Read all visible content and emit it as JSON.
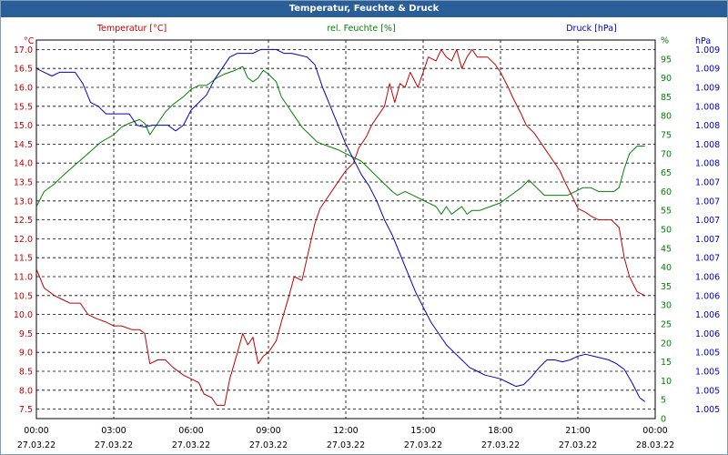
{
  "window": {
    "title": "Temperatur, Feuchte & Druck"
  },
  "chart_data": {
    "type": "line",
    "title": "Temperatur, Feuchte & Druck",
    "grid": true,
    "x_ticks": [
      {
        "time": "00:00",
        "date": "27.03.22"
      },
      {
        "time": "03:00",
        "date": "27.03.22"
      },
      {
        "time": "06:00",
        "date": "27.03.22"
      },
      {
        "time": "09:00",
        "date": "27.03.22"
      },
      {
        "time": "12:00",
        "date": "27.03.22"
      },
      {
        "time": "15:00",
        "date": "27.03.22"
      },
      {
        "time": "18:00",
        "date": "27.03.22"
      },
      {
        "time": "21:00",
        "date": "27.03.22"
      },
      {
        "time": "00:00",
        "date": "28.03.22"
      }
    ],
    "xlim": [
      0,
      24
    ],
    "axes": {
      "temperature": {
        "label": "Temperatur [°C]",
        "unit": "°C",
        "color": "#c00000",
        "ylim": [
          7.25,
          17.25
        ],
        "ticks": [
          "7.5",
          "8.0",
          "8.5",
          "9.0",
          "9.5",
          "10.0",
          "10.5",
          "11.0",
          "11.5",
          "12.0",
          "12.5",
          "13.0",
          "13.5",
          "14.0",
          "14.5",
          "15.0",
          "15.5",
          "16.0",
          "16.5",
          "17.0"
        ]
      },
      "humidity": {
        "label": "rel. Feuchte [%]",
        "unit": "%",
        "color": "#008000",
        "ylim": [
          0,
          100
        ],
        "ticks": [
          "0",
          "5",
          "10",
          "15",
          "20",
          "25",
          "30",
          "35",
          "40",
          "45",
          "50",
          "55",
          "60",
          "65",
          "70",
          "75",
          "80",
          "85",
          "90",
          "95",
          "%"
        ]
      },
      "pressure": {
        "label": "Druck [hPa]",
        "unit": "hPa",
        "color": "#0000c0",
        "ticks": [
          "1.005",
          "1.005",
          "1.005",
          "1.005",
          "1.006",
          "1.006",
          "1.006",
          "1.006",
          "1.007",
          "1.007",
          "1.007",
          "1.007",
          "1.007",
          "1.008",
          "1.008",
          "1.008",
          "1.008",
          "1.009",
          "1.009",
          "1.009"
        ]
      }
    },
    "series": [
      {
        "name": "Temperatur [°C]",
        "axis": "temperature",
        "color": "#c00000",
        "points": [
          [
            0.0,
            11.2
          ],
          [
            0.3,
            10.7
          ],
          [
            0.7,
            10.5
          ],
          [
            1.0,
            10.4
          ],
          [
            1.3,
            10.3
          ],
          [
            1.7,
            10.3
          ],
          [
            2.0,
            10.0
          ],
          [
            2.3,
            9.9
          ],
          [
            2.7,
            9.8
          ],
          [
            3.0,
            9.7
          ],
          [
            3.3,
            9.7
          ],
          [
            3.7,
            9.6
          ],
          [
            4.0,
            9.6
          ],
          [
            4.2,
            9.5
          ],
          [
            4.4,
            8.7
          ],
          [
            4.7,
            8.8
          ],
          [
            5.0,
            8.8
          ],
          [
            5.3,
            8.6
          ],
          [
            5.7,
            8.4
          ],
          [
            6.0,
            8.3
          ],
          [
            6.3,
            8.2
          ],
          [
            6.5,
            7.9
          ],
          [
            6.8,
            7.8
          ],
          [
            7.0,
            7.6
          ],
          [
            7.3,
            7.6
          ],
          [
            7.5,
            8.3
          ],
          [
            7.8,
            9.0
          ],
          [
            8.0,
            9.5
          ],
          [
            8.2,
            9.2
          ],
          [
            8.4,
            9.4
          ],
          [
            8.6,
            8.7
          ],
          [
            8.8,
            8.9
          ],
          [
            9.0,
            9.0
          ],
          [
            9.3,
            9.3
          ],
          [
            9.5,
            9.8
          ],
          [
            9.8,
            10.5
          ],
          [
            10.0,
            11.0
          ],
          [
            10.3,
            10.9
          ],
          [
            10.5,
            11.5
          ],
          [
            10.8,
            12.4
          ],
          [
            11.0,
            12.8
          ],
          [
            11.3,
            13.1
          ],
          [
            11.5,
            13.3
          ],
          [
            11.8,
            13.6
          ],
          [
            12.0,
            13.8
          ],
          [
            12.3,
            14.0
          ],
          [
            12.5,
            14.4
          ],
          [
            12.8,
            14.7
          ],
          [
            13.0,
            15.0
          ],
          [
            13.3,
            15.3
          ],
          [
            13.5,
            15.5
          ],
          [
            13.7,
            16.1
          ],
          [
            13.9,
            15.6
          ],
          [
            14.1,
            16.1
          ],
          [
            14.3,
            16.0
          ],
          [
            14.5,
            16.4
          ],
          [
            14.8,
            16.0
          ],
          [
            15.0,
            16.4
          ],
          [
            15.2,
            16.8
          ],
          [
            15.5,
            16.7
          ],
          [
            15.7,
            17.0
          ],
          [
            15.9,
            16.8
          ],
          [
            16.1,
            16.7
          ],
          [
            16.3,
            17.0
          ],
          [
            16.5,
            16.5
          ],
          [
            16.7,
            16.8
          ],
          [
            16.9,
            17.0
          ],
          [
            17.1,
            16.8
          ],
          [
            17.5,
            16.8
          ],
          [
            17.8,
            16.6
          ],
          [
            18.0,
            16.4
          ],
          [
            18.3,
            16.0
          ],
          [
            18.5,
            15.7
          ],
          [
            18.8,
            15.3
          ],
          [
            19.0,
            15.0
          ],
          [
            19.3,
            14.8
          ],
          [
            19.5,
            14.6
          ],
          [
            19.8,
            14.3
          ],
          [
            20.0,
            14.1
          ],
          [
            20.3,
            13.8
          ],
          [
            20.5,
            13.5
          ],
          [
            20.8,
            13.1
          ],
          [
            21.0,
            12.8
          ],
          [
            21.3,
            12.7
          ],
          [
            21.5,
            12.6
          ],
          [
            21.8,
            12.5
          ],
          [
            22.0,
            12.5
          ],
          [
            22.3,
            12.5
          ],
          [
            22.6,
            12.3
          ],
          [
            22.8,
            11.5
          ],
          [
            23.0,
            11.0
          ],
          [
            23.3,
            10.6
          ],
          [
            23.6,
            10.5
          ]
        ]
      },
      {
        "name": "rel. Feuchte [%]",
        "axis": "humidity",
        "color": "#008000",
        "points": [
          [
            0.0,
            56
          ],
          [
            0.3,
            60
          ],
          [
            0.7,
            62
          ],
          [
            1.0,
            64
          ],
          [
            1.5,
            67
          ],
          [
            2.0,
            70
          ],
          [
            2.5,
            73
          ],
          [
            3.0,
            75
          ],
          [
            3.3,
            77
          ],
          [
            3.6,
            78
          ],
          [
            4.0,
            79
          ],
          [
            4.2,
            78
          ],
          [
            4.4,
            75
          ],
          [
            4.7,
            78
          ],
          [
            5.0,
            81
          ],
          [
            5.3,
            83
          ],
          [
            5.7,
            85
          ],
          [
            6.0,
            87
          ],
          [
            6.3,
            88
          ],
          [
            6.6,
            88
          ],
          [
            7.0,
            90
          ],
          [
            7.3,
            91
          ],
          [
            7.7,
            92
          ],
          [
            8.0,
            93
          ],
          [
            8.2,
            90
          ],
          [
            8.4,
            89
          ],
          [
            8.6,
            90
          ],
          [
            8.8,
            92
          ],
          [
            9.0,
            91
          ],
          [
            9.3,
            89
          ],
          [
            9.5,
            85
          ],
          [
            9.8,
            82
          ],
          [
            10.0,
            80
          ],
          [
            10.3,
            77
          ],
          [
            10.6,
            75
          ],
          [
            10.9,
            73
          ],
          [
            11.3,
            72
          ],
          [
            11.7,
            71
          ],
          [
            12.0,
            70
          ],
          [
            12.3,
            69
          ],
          [
            12.6,
            68
          ],
          [
            12.9,
            66
          ],
          [
            13.2,
            64
          ],
          [
            13.5,
            62
          ],
          [
            13.8,
            60
          ],
          [
            14.0,
            59
          ],
          [
            14.3,
            60
          ],
          [
            14.6,
            59
          ],
          [
            14.9,
            58
          ],
          [
            15.2,
            57
          ],
          [
            15.5,
            56
          ],
          [
            15.7,
            54
          ],
          [
            15.9,
            56
          ],
          [
            16.1,
            54
          ],
          [
            16.3,
            55
          ],
          [
            16.5,
            56
          ],
          [
            16.7,
            54
          ],
          [
            16.9,
            55
          ],
          [
            17.2,
            55
          ],
          [
            17.6,
            56
          ],
          [
            18.0,
            57
          ],
          [
            18.4,
            59
          ],
          [
            18.8,
            61
          ],
          [
            19.1,
            63
          ],
          [
            19.4,
            61
          ],
          [
            19.7,
            59
          ],
          [
            20.0,
            59
          ],
          [
            20.3,
            59
          ],
          [
            20.6,
            59
          ],
          [
            20.9,
            60
          ],
          [
            21.2,
            61
          ],
          [
            21.5,
            61
          ],
          [
            21.8,
            60
          ],
          [
            22.1,
            60
          ],
          [
            22.4,
            60
          ],
          [
            22.6,
            61
          ],
          [
            22.8,
            66
          ],
          [
            23.0,
            70
          ],
          [
            23.3,
            72
          ],
          [
            23.6,
            72
          ]
        ]
      },
      {
        "name": "Druck [hPa]",
        "axis": "pressure",
        "color": "#0000c0",
        "points": [
          [
            0.0,
            16.5
          ],
          [
            0.3,
            16.4
          ],
          [
            0.6,
            16.3
          ],
          [
            0.9,
            16.4
          ],
          [
            1.2,
            16.4
          ],
          [
            1.5,
            16.4
          ],
          [
            1.8,
            16.1
          ],
          [
            2.1,
            15.6
          ],
          [
            2.4,
            15.5
          ],
          [
            2.7,
            15.3
          ],
          [
            3.0,
            15.3
          ],
          [
            3.3,
            15.3
          ],
          [
            3.6,
            15.3
          ],
          [
            3.9,
            15.0
          ],
          [
            4.2,
            14.95
          ],
          [
            4.5,
            15.0
          ],
          [
            4.8,
            15.0
          ],
          [
            5.1,
            15.0
          ],
          [
            5.4,
            14.85
          ],
          [
            5.7,
            15.0
          ],
          [
            6.0,
            15.4
          ],
          [
            6.3,
            15.6
          ],
          [
            6.6,
            15.8
          ],
          [
            6.9,
            16.2
          ],
          [
            7.2,
            16.5
          ],
          [
            7.5,
            16.8
          ],
          [
            7.8,
            16.9
          ],
          [
            8.1,
            16.9
          ],
          [
            8.4,
            16.9
          ],
          [
            8.7,
            17.0
          ],
          [
            9.0,
            17.0
          ],
          [
            9.3,
            17.0
          ],
          [
            9.6,
            16.9
          ],
          [
            9.9,
            16.9
          ],
          [
            10.2,
            16.85
          ],
          [
            10.5,
            16.8
          ],
          [
            10.8,
            16.6
          ],
          [
            11.1,
            16.0
          ],
          [
            11.4,
            15.5
          ],
          [
            11.7,
            15.0
          ],
          [
            12.0,
            14.5
          ],
          [
            12.3,
            14.1
          ],
          [
            12.6,
            13.7
          ],
          [
            12.9,
            13.4
          ],
          [
            13.2,
            13.0
          ],
          [
            13.5,
            12.5
          ],
          [
            13.8,
            12.1
          ],
          [
            14.1,
            11.6
          ],
          [
            14.4,
            11.1
          ],
          [
            14.7,
            10.6
          ],
          [
            15.0,
            10.2
          ],
          [
            15.3,
            9.8
          ],
          [
            15.6,
            9.5
          ],
          [
            15.9,
            9.2
          ],
          [
            16.2,
            9.0
          ],
          [
            16.5,
            8.8
          ],
          [
            16.8,
            8.6
          ],
          [
            17.1,
            8.5
          ],
          [
            17.4,
            8.4
          ],
          [
            17.7,
            8.35
          ],
          [
            18.0,
            8.3
          ],
          [
            18.3,
            8.2
          ],
          [
            18.6,
            8.1
          ],
          [
            18.9,
            8.15
          ],
          [
            19.2,
            8.35
          ],
          [
            19.5,
            8.6
          ],
          [
            19.8,
            8.8
          ],
          [
            20.1,
            8.8
          ],
          [
            20.4,
            8.75
          ],
          [
            20.7,
            8.8
          ],
          [
            21.0,
            8.9
          ],
          [
            21.3,
            8.95
          ],
          [
            21.6,
            8.9
          ],
          [
            21.9,
            8.85
          ],
          [
            22.2,
            8.8
          ],
          [
            22.5,
            8.7
          ],
          [
            22.8,
            8.55
          ],
          [
            23.1,
            8.2
          ],
          [
            23.4,
            7.8
          ],
          [
            23.6,
            7.7
          ]
        ]
      }
    ]
  }
}
